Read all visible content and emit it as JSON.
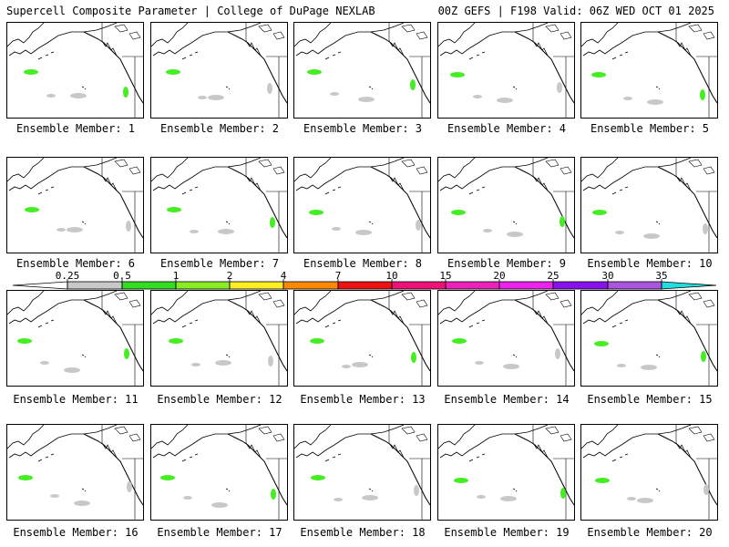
{
  "header": {
    "left": "Supercell Composite Parameter | College of DuPage NEXLAB",
    "right": "00Z GEFS | F198 Valid: 06Z WED OCT 01 2025"
  },
  "member_label_prefix": "Ensemble Member: ",
  "members": [
    "1",
    "2",
    "3",
    "4",
    "5",
    "6",
    "7",
    "8",
    "9",
    "10",
    "11",
    "12",
    "13",
    "14",
    "15",
    "16",
    "17",
    "18",
    "19",
    "20"
  ],
  "colorbar": {
    "ticks": [
      "0.25",
      "0.5",
      "1",
      "2",
      "4",
      "7",
      "10",
      "15",
      "20",
      "25",
      "30",
      "35"
    ],
    "colors": [
      "#ffffff",
      "#c8c8c8",
      "#33dd22",
      "#88ee22",
      "#ffee22",
      "#ff8800",
      "#ee1111",
      "#ee1177",
      "#ee22bb",
      "#ee22ee",
      "#8811ee",
      "#aa55dd",
      "#22dddd"
    ]
  },
  "colors": {
    "gray_fill": "#c8c8c8",
    "green_fill": "#44ee22"
  }
}
